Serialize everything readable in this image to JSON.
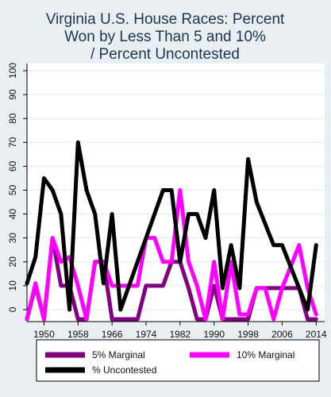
{
  "chart_data": {
    "type": "line",
    "title_lines": [
      "Virginia U.S. House Races: Percent",
      "Won by Less Than 5 and 10%",
      "/ Percent Uncontested"
    ],
    "xlabel": "",
    "ylabel": "",
    "xlim": [
      1946,
      2016
    ],
    "ylim": [
      -5,
      103
    ],
    "x_ticks": [
      1950,
      1958,
      1966,
      1974,
      1982,
      1990,
      1998,
      2006,
      2014
    ],
    "y_ticks": [
      0,
      10,
      20,
      30,
      40,
      50,
      60,
      70,
      80,
      90,
      100
    ],
    "grid": "horizontal",
    "legend_position": "bottom",
    "x": [
      1946,
      1948,
      1950,
      1952,
      1954,
      1956,
      1958,
      1960,
      1962,
      1964,
      1966,
      1968,
      1970,
      1972,
      1974,
      1976,
      1978,
      1980,
      1982,
      1984,
      1986,
      1988,
      1990,
      1992,
      1994,
      1996,
      1998,
      2000,
      2002,
      2004,
      2006,
      2008,
      2010,
      2012,
      2014
    ],
    "series": [
      {
        "name": "5% Marginal",
        "color": "#800080",
        "values": [
          -4,
          10,
          -4,
          30,
          10,
          10,
          -4,
          -4,
          20,
          20,
          -4,
          -4,
          -4,
          -4,
          10,
          10,
          10,
          20,
          20,
          9,
          -4,
          -4,
          10,
          -4,
          -4,
          -4,
          -4,
          9,
          9,
          9,
          9,
          9,
          9,
          -4,
          -4
        ]
      },
      {
        "name": "10% Marginal",
        "color": "#ff00ff",
        "values": [
          -4,
          11,
          -4,
          30,
          20,
          22,
          10,
          -4,
          20,
          20,
          10,
          10,
          10,
          10,
          30,
          30,
          20,
          20,
          50,
          20,
          10,
          -4,
          20,
          -4,
          20,
          -2,
          -2,
          9,
          9,
          -4,
          9,
          18,
          27,
          9,
          -2
        ]
      },
      {
        "name": "% Uncontested",
        "color": "#000000",
        "values": [
          11,
          22,
          55,
          50,
          40,
          0,
          70,
          50,
          40,
          11,
          40,
          0,
          10,
          20,
          30,
          40,
          50,
          50,
          20,
          40,
          40,
          30,
          50,
          9,
          27,
          9,
          63,
          45,
          36,
          27,
          27,
          18,
          9,
          0,
          27
        ]
      }
    ]
  }
}
